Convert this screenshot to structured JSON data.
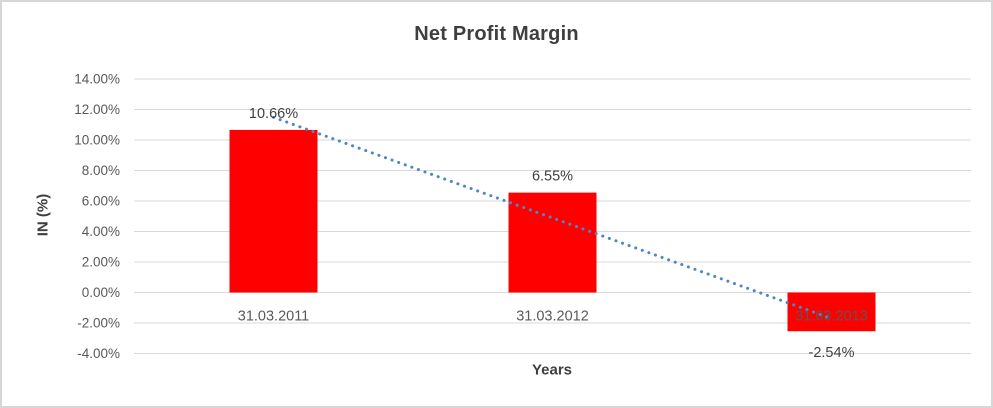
{
  "chart_data": {
    "type": "bar",
    "title": "Net Profit Margin",
    "categories": [
      "31.03.2011",
      "31.03.2012",
      "31.03.2013"
    ],
    "series": [
      {
        "name": "Net Profit Margin",
        "values": [
          10.66,
          6.55,
          -2.54
        ]
      }
    ],
    "data_labels": [
      "10.66%",
      "6.55%",
      "-2.54%"
    ],
    "xlabel": "Years",
    "ylabel": "IN (%)",
    "ylim": [
      -4,
      14
    ],
    "ytick_step": 2,
    "yticks": [
      14,
      12,
      10,
      8,
      6,
      4,
      2,
      0,
      -2,
      -4
    ],
    "ytick_labels": [
      "14.00%",
      "12.00%",
      "10.00%",
      "8.00%",
      "6.00%",
      "4.00%",
      "2.00%",
      "0.00%",
      "-2.00%",
      "-4.00%"
    ],
    "grid": true,
    "legend": "none",
    "bar_color": "#FF0000",
    "trendline": {
      "type": "linear",
      "style": "dotted",
      "color": "#4E87C9",
      "endpoint_values": [
        11.49,
        -1.71
      ]
    }
  },
  "colors": {
    "title_text": "#3F3F3F",
    "axis_text": "#595959",
    "data_label_text": "#404040",
    "gridline": "#D9D9D9",
    "frame_border": "#D7D7D7",
    "background": "#FFFFFF"
  }
}
